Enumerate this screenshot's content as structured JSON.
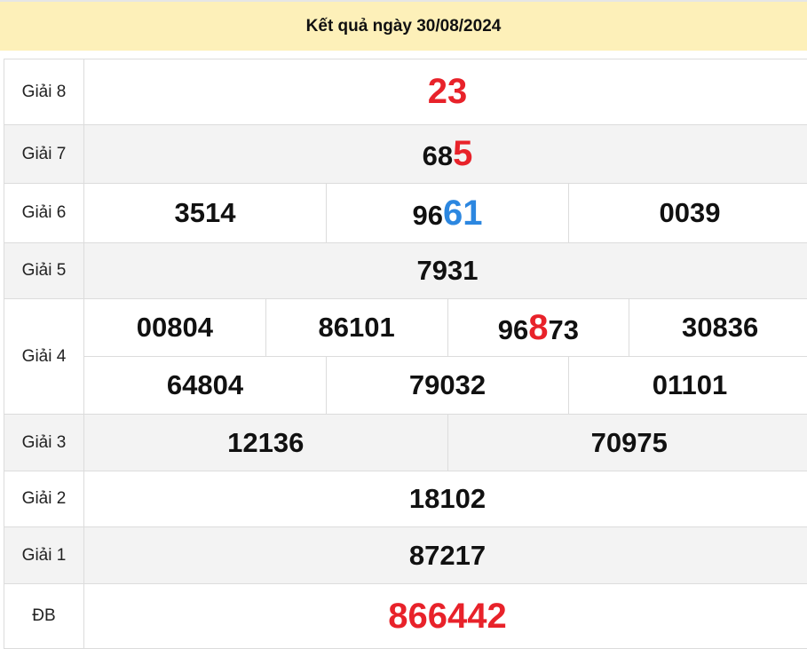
{
  "header": {
    "title": "Kết quả ngày 30/08/2024"
  },
  "colors": {
    "red": "#e8222a",
    "blue": "#2c87e0",
    "header_bg": "#fdf0b9"
  },
  "rows": [
    {
      "label": "Giải 8",
      "alt": false,
      "height": 73,
      "lines": [
        [
          {
            "prefix": "",
            "hl": "23",
            "suffix": "",
            "color": "red",
            "whole": true
          }
        ]
      ]
    },
    {
      "label": "Giải 7",
      "alt": true,
      "height": 65,
      "lines": [
        [
          {
            "prefix": "68",
            "hl": "5",
            "suffix": "",
            "color": "red"
          }
        ]
      ]
    },
    {
      "label": "Giải 6",
      "alt": false,
      "height": 66,
      "lines": [
        [
          {
            "prefix": "3514"
          },
          {
            "prefix": "96",
            "hl": "61",
            "suffix": "",
            "color": "blue"
          },
          {
            "prefix": "0039"
          }
        ]
      ]
    },
    {
      "label": "Giải 5",
      "alt": true,
      "height": 62,
      "lines": [
        [
          {
            "prefix": "7931"
          }
        ]
      ]
    },
    {
      "label": "Giải 4",
      "alt": false,
      "height": 128,
      "lines": [
        [
          {
            "prefix": "00804"
          },
          {
            "prefix": "86101"
          },
          {
            "prefix": "96",
            "hl": "8",
            "suffix": "73",
            "color": "red"
          },
          {
            "prefix": "30836"
          }
        ],
        [
          {
            "prefix": "64804"
          },
          {
            "prefix": "79032"
          },
          {
            "prefix": "01101"
          }
        ]
      ]
    },
    {
      "label": "Giải 3",
      "alt": true,
      "height": 63,
      "lines": [
        [
          {
            "prefix": "12136"
          },
          {
            "prefix": "70975"
          }
        ]
      ]
    },
    {
      "label": "Giải 2",
      "alt": false,
      "height": 62,
      "lines": [
        [
          {
            "prefix": "18102"
          }
        ]
      ]
    },
    {
      "label": "Giải 1",
      "alt": true,
      "height": 63,
      "lines": [
        [
          {
            "prefix": "87217"
          }
        ]
      ]
    },
    {
      "label": "ĐB",
      "alt": false,
      "height": 72,
      "lines": [
        [
          {
            "prefix": "",
            "hl": "866442",
            "suffix": "",
            "color": "red",
            "whole": true
          }
        ]
      ]
    }
  ]
}
